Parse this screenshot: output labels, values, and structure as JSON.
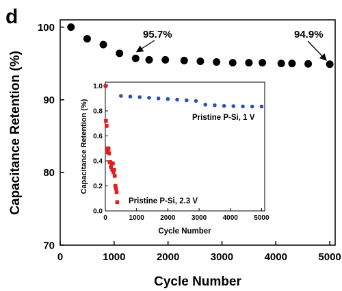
{
  "panel_label": "d",
  "chart_data": [
    {
      "type": "scatter",
      "title": "",
      "xlabel": "Cycle Number",
      "ylabel": "Capacitance Retention (%)",
      "xlim": [
        0,
        5100
      ],
      "ylim": [
        70,
        101
      ],
      "xticks": [
        0,
        1000,
        2000,
        3000,
        4000,
        5000
      ],
      "yticks": [
        70,
        80,
        90,
        100
      ],
      "grid": false,
      "series": [
        {
          "name": "",
          "color": "#000000",
          "marker": "circle",
          "x": [
            200,
            500,
            800,
            1100,
            1400,
            1650,
            1950,
            2300,
            2600,
            2900,
            3200,
            3500,
            3750,
            4100,
            4300,
            4600,
            5000
          ],
          "y": [
            100,
            98.4,
            97.6,
            96.4,
            95.7,
            95.5,
            95.5,
            95.4,
            95.3,
            95.2,
            95.1,
            95.1,
            95.1,
            95.0,
            95.0,
            94.95,
            94.9
          ]
        }
      ],
      "annotations": [
        {
          "text": "95.7%",
          "x": 1400,
          "y": 95.7
        },
        {
          "text": "94.9%",
          "x": 5000,
          "y": 94.9
        }
      ]
    },
    {
      "type": "scatter",
      "title": "",
      "xlabel": "Cycle Number",
      "ylabel": "Capacitance Retention (%)",
      "xlim": [
        0,
        5100
      ],
      "ylim": [
        0,
        1.03
      ],
      "xticks": [
        0,
        1000,
        2000,
        3000,
        4000,
        5000
      ],
      "yticks": [
        0.0,
        0.2,
        0.4,
        0.6,
        0.8,
        1.0
      ],
      "ytick_labels": [
        "0.0",
        "0.2",
        "0.4",
        "0.6",
        "0.8",
        "1.0"
      ],
      "grid": false,
      "series": [
        {
          "name": "Pristine P-Si, 1 V",
          "color": "#2e4fb3",
          "marker": "circle",
          "x": [
            1,
            500,
            800,
            1100,
            1400,
            1700,
            2000,
            2300,
            2600,
            2900,
            3200,
            3500,
            3800,
            4100,
            4400,
            4700,
            5000
          ],
          "y": [
            1.0,
            0.92,
            0.915,
            0.91,
            0.905,
            0.9,
            0.895,
            0.89,
            0.885,
            0.88,
            0.85,
            0.845,
            0.84,
            0.838,
            0.836,
            0.835,
            0.835
          ]
        },
        {
          "name": "Pristine P-Si, 2.3 V",
          "color": "#e02020",
          "marker": "square",
          "x": [
            10,
            20,
            40,
            60,
            80,
            100,
            120,
            140,
            160,
            180,
            200,
            220,
            240,
            260,
            280,
            300,
            320,
            340,
            360,
            380
          ],
          "y": [
            1.0,
            0.72,
            0.68,
            0.5,
            0.47,
            0.5,
            0.46,
            0.39,
            0.39,
            0.35,
            0.38,
            0.33,
            0.38,
            0.31,
            0.33,
            0.28,
            0.2,
            0.18,
            0.15,
            0.07
          ]
        }
      ],
      "labels": [
        {
          "text": "Pristine P-Si, 1 V",
          "color": "#2e4fb3"
        },
        {
          "text": "Pristine P-Si, 2.3 V",
          "color": "#e02020"
        }
      ]
    }
  ]
}
